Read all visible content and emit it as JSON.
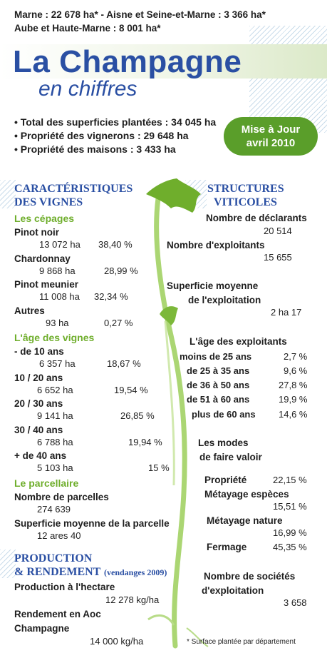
{
  "top_lines": {
    "line1": "Marne : 22 678 ha* - Aisne et Seine-et-Marne : 3 366 ha*",
    "line2": "Aube et Haute-Marne : 8 001 ha*"
  },
  "title": "La Champagne",
  "subtitle": "en chiffres",
  "totals": [
    "• Total des superficies plantées : 34 045 ha",
    "• Propriété des vignerons : 29 648 ha",
    "• Propriété des maisons : 3 433 ha"
  ],
  "badge": {
    "line1": "Mise à Jour",
    "line2": "avril 2010"
  },
  "left": {
    "heading1": "CARACTÉRISTIQUES",
    "heading2": "DES VIGNES",
    "cepages_title": "Les cépages",
    "cepages": [
      {
        "name": "Pinot noir",
        "ha": "13 072 ha",
        "pct": "38,40 %"
      },
      {
        "name": "Chardonnay",
        "ha": "9 868 ha",
        "pct": "28,99 %"
      },
      {
        "name": "Pinot meunier",
        "ha": "11 008 ha",
        "pct": "32,34 %"
      },
      {
        "name": "Autres",
        "ha": "93 ha",
        "pct": "0,27 %"
      }
    ],
    "age_title": "L'âge des vignes",
    "ages": [
      {
        "name": "- de 10 ans",
        "ha": "6 357 ha",
        "pct": "18,67 %"
      },
      {
        "name": "10 / 20 ans",
        "ha": "6 652 ha",
        "pct": "19,54 %"
      },
      {
        "name": "20 / 30 ans",
        "ha": "9 141 ha",
        "pct": "26,85 %"
      },
      {
        "name": "30 / 40 ans",
        "ha": "6 788 ha",
        "pct": "19,94 %"
      },
      {
        "name": "+ de 40 ans",
        "ha": "5 103 ha",
        "pct": "15 %"
      }
    ],
    "parcellaire_title": "Le parcellaire",
    "parcelles_label": "Nombre de parcelles",
    "parcelles_value": "274 639",
    "superficie_label": "Superficie moyenne de la parcelle",
    "superficie_value": "12 ares 40"
  },
  "production": {
    "heading1": "PRODUCTION",
    "heading2": "& RENDEMENT",
    "note": "(vendanges 2009)",
    "prod_label": "Production à l'hectare",
    "prod_value": "12 278 kg/ha",
    "rend_label1": "Rendement en Aoc",
    "rend_label2": "Champagne",
    "rend_value": "14 000 kg/ha"
  },
  "right": {
    "heading1": "STRUCTURES",
    "heading2": "VITICOLES",
    "declarants_label": "Nombre de déclarants",
    "declarants_value": "20 514",
    "exploitants_label": "Nombre d'exploitants",
    "exploitants_value": "15 655",
    "superficie_label1": "Superficie moyenne",
    "superficie_label2": "de l'exploitation",
    "superficie_value": "2 ha 17",
    "age_title": "L'âge des exploitants",
    "ages": [
      {
        "name": "moins de 25 ans",
        "pct": "2,7 %"
      },
      {
        "name": "de 25 à 35 ans",
        "pct": "9,6 %"
      },
      {
        "name": "de 36 à 50 ans",
        "pct": "27,8 %"
      },
      {
        "name": "de 51 à 60 ans",
        "pct": "19,9 %"
      },
      {
        "name": "plus de 60 ans",
        "pct": "14,6 %"
      }
    ],
    "modes_title1": "Les modes",
    "modes_title2": "de faire valoir",
    "modes": [
      {
        "name": "Propriété",
        "pct": "22,15 %"
      },
      {
        "name": "Métayage espèces",
        "pct": "15,51 %"
      },
      {
        "name": "Métayage nature",
        "pct": "16,99 %"
      },
      {
        "name": "Fermage",
        "pct": "45,35 %"
      }
    ],
    "societes_label1": "Nombre de sociétés",
    "societes_label2": "d'exploitation",
    "societes_value": "3 658"
  },
  "footnote": "* Surface plantée par département",
  "colors": {
    "blue": "#2a4fa3",
    "green": "#6fae2c",
    "badge": "#5a9e2a"
  },
  "icons": [
    "vine-leaf-icon",
    "vine-stem-graphic"
  ]
}
